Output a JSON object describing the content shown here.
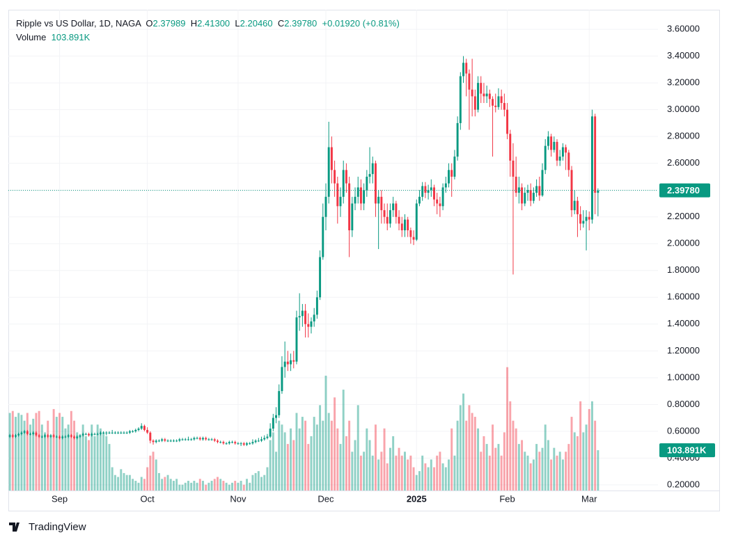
{
  "header": {
    "symbol": "Ripple vs US Dollar, 1D, NAGA",
    "open_label": "O",
    "open": "2.37989",
    "high_label": "H",
    "high": "2.41300",
    "low_label": "L",
    "low": "2.20460",
    "close_label": "C",
    "close": "2.39780",
    "change": "+0.01920 (+0.81%)",
    "volume_label": "Volume",
    "volume": "103.891K"
  },
  "chart_data": {
    "type": "candlestick",
    "up_color": "#089981",
    "down_color": "#f23645",
    "grid": true,
    "xlim": [
      -0.5,
      221.5
    ],
    "xticks": [
      {
        "value": 17,
        "label": "Sep"
      },
      {
        "value": 47,
        "label": "Oct"
      },
      {
        "value": 78,
        "label": "Nov"
      },
      {
        "value": 108,
        "label": "Dec"
      },
      {
        "value": 139,
        "label": "2025"
      },
      {
        "value": 170,
        "label": "Feb"
      },
      {
        "value": 198,
        "label": "Mar"
      }
    ],
    "ylim": [
      0.158,
      3.746
    ],
    "yticks": [
      {
        "value": 0.2,
        "label": "0.20000"
      },
      {
        "value": 0.4,
        "label": "0.40000"
      },
      {
        "value": 0.6,
        "label": "0.60000"
      },
      {
        "value": 0.8,
        "label": "0.80000"
      },
      {
        "value": 1,
        "label": "1.00000"
      },
      {
        "value": 1.2,
        "label": "1.20000"
      },
      {
        "value": 1.4,
        "label": "1.40000"
      },
      {
        "value": 1.6,
        "label": "1.60000"
      },
      {
        "value": 1.8,
        "label": "1.80000"
      },
      {
        "value": 2,
        "label": "2.00000"
      },
      {
        "value": 2.2,
        "label": "2.20000"
      },
      {
        "value": 2.4,
        "label": "2.40000"
      },
      {
        "value": 2.6,
        "label": "2.60000"
      },
      {
        "value": 2.8,
        "label": "2.80000"
      },
      {
        "value": 3,
        "label": "3.00000"
      },
      {
        "value": 3.2,
        "label": "3.20000"
      },
      {
        "value": 3.4,
        "label": "3.40000"
      },
      {
        "value": 3.6,
        "label": "3.60000"
      }
    ],
    "volume_ylim": [
      0,
      400
    ],
    "ohlc": [
      [
        0.56,
        0.58,
        0.55,
        0.57
      ],
      [
        0.57,
        0.58,
        0.55,
        0.56
      ],
      [
        0.56,
        0.58,
        0.55,
        0.57
      ],
      [
        0.57,
        0.59,
        0.56,
        0.58
      ],
      [
        0.58,
        0.6,
        0.57,
        0.59
      ],
      [
        0.59,
        0.61,
        0.58,
        0.6
      ],
      [
        0.6,
        0.61,
        0.57,
        0.58
      ],
      [
        0.58,
        0.59,
        0.57,
        0.58
      ],
      [
        0.58,
        0.6,
        0.57,
        0.59
      ],
      [
        0.59,
        0.6,
        0.56,
        0.57
      ],
      [
        0.57,
        0.58,
        0.55,
        0.56
      ],
      [
        0.56,
        0.57,
        0.55,
        0.56
      ],
      [
        0.56,
        0.58,
        0.55,
        0.57
      ],
      [
        0.57,
        0.58,
        0.55,
        0.56
      ],
      [
        0.56,
        0.58,
        0.55,
        0.57
      ],
      [
        0.57,
        0.58,
        0.55,
        0.56
      ],
      [
        0.56,
        0.57,
        0.55,
        0.56
      ],
      [
        0.56,
        0.57,
        0.54,
        0.55
      ],
      [
        0.55,
        0.57,
        0.54,
        0.56
      ],
      [
        0.56,
        0.57,
        0.55,
        0.56
      ],
      [
        0.56,
        0.58,
        0.55,
        0.57
      ],
      [
        0.57,
        0.58,
        0.55,
        0.56
      ],
      [
        0.56,
        0.57,
        0.54,
        0.55
      ],
      [
        0.55,
        0.57,
        0.54,
        0.56
      ],
      [
        0.56,
        0.58,
        0.55,
        0.57
      ],
      [
        0.57,
        0.59,
        0.56,
        0.58
      ],
      [
        0.58,
        0.59,
        0.57,
        0.58
      ],
      [
        0.58,
        0.59,
        0.56,
        0.57
      ],
      [
        0.57,
        0.59,
        0.56,
        0.58
      ],
      [
        0.58,
        0.59,
        0.57,
        0.58
      ],
      [
        0.58,
        0.59,
        0.57,
        0.58
      ],
      [
        0.58,
        0.6,
        0.57,
        0.59
      ],
      [
        0.59,
        0.6,
        0.58,
        0.59
      ],
      [
        0.59,
        0.6,
        0.57,
        0.59
      ],
      [
        0.59,
        0.6,
        0.58,
        0.59
      ],
      [
        0.59,
        0.61,
        0.58,
        0.59
      ],
      [
        0.59,
        0.6,
        0.58,
        0.59
      ],
      [
        0.59,
        0.6,
        0.58,
        0.59
      ],
      [
        0.59,
        0.6,
        0.58,
        0.59
      ],
      [
        0.59,
        0.6,
        0.58,
        0.59
      ],
      [
        0.59,
        0.6,
        0.58,
        0.59
      ],
      [
        0.59,
        0.61,
        0.58,
        0.6
      ],
      [
        0.6,
        0.61,
        0.59,
        0.6
      ],
      [
        0.6,
        0.62,
        0.59,
        0.61
      ],
      [
        0.61,
        0.63,
        0.6,
        0.62
      ],
      [
        0.62,
        0.66,
        0.61,
        0.64
      ],
      [
        0.64,
        0.65,
        0.6,
        0.61
      ],
      [
        0.61,
        0.63,
        0.58,
        0.59
      ],
      [
        0.59,
        0.6,
        0.51,
        0.53
      ],
      [
        0.53,
        0.54,
        0.5,
        0.52
      ],
      [
        0.52,
        0.54,
        0.51,
        0.53
      ],
      [
        0.53,
        0.54,
        0.52,
        0.53
      ],
      [
        0.53,
        0.55,
        0.52,
        0.54
      ],
      [
        0.54,
        0.55,
        0.52,
        0.53
      ],
      [
        0.53,
        0.54,
        0.52,
        0.53
      ],
      [
        0.53,
        0.54,
        0.52,
        0.53
      ],
      [
        0.53,
        0.54,
        0.52,
        0.53
      ],
      [
        0.53,
        0.54,
        0.52,
        0.53
      ],
      [
        0.53,
        0.55,
        0.52,
        0.54
      ],
      [
        0.54,
        0.55,
        0.53,
        0.54
      ],
      [
        0.54,
        0.55,
        0.53,
        0.54
      ],
      [
        0.54,
        0.56,
        0.53,
        0.54
      ],
      [
        0.54,
        0.55,
        0.53,
        0.54
      ],
      [
        0.54,
        0.56,
        0.53,
        0.55
      ],
      [
        0.55,
        0.56,
        0.54,
        0.55
      ],
      [
        0.55,
        0.56,
        0.53,
        0.54
      ],
      [
        0.54,
        0.56,
        0.53,
        0.55
      ],
      [
        0.55,
        0.56,
        0.53,
        0.54
      ],
      [
        0.54,
        0.55,
        0.53,
        0.54
      ],
      [
        0.54,
        0.55,
        0.53,
        0.54
      ],
      [
        0.54,
        0.55,
        0.52,
        0.53
      ],
      [
        0.53,
        0.54,
        0.51,
        0.52
      ],
      [
        0.52,
        0.53,
        0.51,
        0.52
      ],
      [
        0.52,
        0.53,
        0.5,
        0.51
      ],
      [
        0.51,
        0.52,
        0.5,
        0.51
      ],
      [
        0.51,
        0.53,
        0.5,
        0.52
      ],
      [
        0.52,
        0.53,
        0.51,
        0.52
      ],
      [
        0.52,
        0.53,
        0.5,
        0.51
      ],
      [
        0.51,
        0.52,
        0.5,
        0.51
      ],
      [
        0.51,
        0.52,
        0.49,
        0.51
      ],
      [
        0.51,
        0.52,
        0.49,
        0.5
      ],
      [
        0.5,
        0.52,
        0.49,
        0.51
      ],
      [
        0.51,
        0.52,
        0.5,
        0.51
      ],
      [
        0.51,
        0.54,
        0.5,
        0.52
      ],
      [
        0.52,
        0.54,
        0.51,
        0.53
      ],
      [
        0.53,
        0.55,
        0.52,
        0.53
      ],
      [
        0.53,
        0.56,
        0.52,
        0.54
      ],
      [
        0.54,
        0.57,
        0.53,
        0.55
      ],
      [
        0.55,
        0.58,
        0.54,
        0.56
      ],
      [
        0.56,
        0.66,
        0.55,
        0.62
      ],
      [
        0.62,
        0.73,
        0.6,
        0.7
      ],
      [
        0.7,
        0.78,
        0.66,
        0.72
      ],
      [
        0.72,
        0.95,
        0.7,
        0.9
      ],
      [
        0.9,
        1.16,
        0.88,
        1.08
      ],
      [
        1.08,
        1.27,
        1.0,
        1.12
      ],
      [
        1.12,
        1.2,
        1.05,
        1.1
      ],
      [
        1.1,
        1.18,
        1.05,
        1.13
      ],
      [
        1.13,
        1.2,
        1.07,
        1.12
      ],
      [
        1.12,
        1.5,
        1.1,
        1.45
      ],
      [
        1.45,
        1.63,
        1.35,
        1.46
      ],
      [
        1.46,
        1.55,
        1.38,
        1.5
      ],
      [
        1.5,
        1.55,
        1.3,
        1.4
      ],
      [
        1.4,
        1.48,
        1.3,
        1.38
      ],
      [
        1.38,
        1.45,
        1.33,
        1.42
      ],
      [
        1.42,
        1.52,
        1.38,
        1.47
      ],
      [
        1.47,
        1.65,
        1.44,
        1.6
      ],
      [
        1.6,
        1.95,
        1.58,
        1.9
      ],
      [
        1.9,
        2.3,
        1.88,
        2.2
      ],
      [
        2.2,
        2.45,
        2.1,
        2.35
      ],
      [
        2.35,
        2.91,
        2.3,
        2.72
      ],
      [
        2.72,
        2.8,
        2.45,
        2.55
      ],
      [
        2.55,
        2.62,
        2.35,
        2.45
      ],
      [
        2.45,
        2.5,
        2.15,
        2.28
      ],
      [
        2.28,
        2.42,
        2.2,
        2.35
      ],
      [
        2.35,
        2.62,
        2.3,
        2.55
      ],
      [
        2.55,
        2.6,
        2.38,
        2.45
      ],
      [
        2.45,
        2.5,
        1.9,
        2.1
      ],
      [
        2.1,
        2.35,
        2.05,
        2.3
      ],
      [
        2.3,
        2.42,
        2.25,
        2.35
      ],
      [
        2.35,
        2.5,
        2.3,
        2.42
      ],
      [
        2.42,
        2.48,
        2.25,
        2.3
      ],
      [
        2.3,
        2.45,
        2.25,
        2.4
      ],
      [
        2.4,
        2.55,
        2.35,
        2.5
      ],
      [
        2.5,
        2.72,
        2.45,
        2.52
      ],
      [
        2.52,
        2.65,
        2.45,
        2.6
      ],
      [
        2.6,
        2.62,
        2.2,
        2.3
      ],
      [
        2.3,
        2.4,
        1.96,
        2.35
      ],
      [
        2.35,
        2.4,
        2.15,
        2.25
      ],
      [
        2.25,
        2.3,
        2.15,
        2.2
      ],
      [
        2.2,
        2.3,
        2.1,
        2.15
      ],
      [
        2.15,
        2.3,
        2.12,
        2.25
      ],
      [
        2.25,
        2.35,
        2.2,
        2.3
      ],
      [
        2.3,
        2.32,
        2.15,
        2.2
      ],
      [
        2.2,
        2.25,
        2.1,
        2.15
      ],
      [
        2.15,
        2.2,
        2.05,
        2.1
      ],
      [
        2.1,
        2.22,
        2.05,
        2.18
      ],
      [
        2.18,
        2.2,
        2.05,
        2.1
      ],
      [
        2.1,
        2.12,
        2.0,
        2.05
      ],
      [
        2.05,
        2.1,
        1.99,
        2.03
      ],
      [
        2.03,
        2.33,
        2.02,
        2.3
      ],
      [
        2.3,
        2.4,
        2.28,
        2.35
      ],
      [
        2.35,
        2.46,
        2.32,
        2.43
      ],
      [
        2.43,
        2.46,
        2.34,
        2.38
      ],
      [
        2.38,
        2.44,
        2.33,
        2.4
      ],
      [
        2.4,
        2.48,
        2.35,
        2.42
      ],
      [
        2.42,
        2.44,
        2.28,
        2.33
      ],
      [
        2.33,
        2.38,
        2.22,
        2.3
      ],
      [
        2.3,
        2.35,
        2.2,
        2.28
      ],
      [
        2.28,
        2.45,
        2.25,
        2.42
      ],
      [
        2.42,
        2.5,
        2.38,
        2.45
      ],
      [
        2.45,
        2.6,
        2.42,
        2.55
      ],
      [
        2.55,
        2.6,
        2.35,
        2.5
      ],
      [
        2.5,
        2.7,
        2.48,
        2.65
      ],
      [
        2.65,
        2.95,
        2.62,
        2.9
      ],
      [
        2.9,
        3.28,
        2.85,
        3.25
      ],
      [
        3.25,
        3.4,
        3.2,
        3.35
      ],
      [
        3.35,
        3.38,
        3.1,
        3.27
      ],
      [
        3.27,
        3.3,
        2.85,
        3.15
      ],
      [
        3.15,
        3.38,
        2.95,
        3.1
      ],
      [
        3.1,
        3.15,
        2.95,
        3.0
      ],
      [
        3.0,
        3.25,
        2.98,
        3.2
      ],
      [
        3.2,
        3.25,
        3.05,
        3.12
      ],
      [
        3.12,
        3.2,
        3.05,
        3.1
      ],
      [
        3.1,
        3.18,
        3.05,
        3.12
      ],
      [
        3.12,
        3.15,
        3.02,
        3.08
      ],
      [
        3.08,
        3.1,
        2.65,
        3.03
      ],
      [
        3.03,
        3.12,
        2.98,
        3.02
      ],
      [
        3.02,
        3.16,
        3.0,
        3.1
      ],
      [
        3.1,
        3.15,
        3.0,
        3.05
      ],
      [
        3.05,
        3.12,
        2.95,
        3.0
      ],
      [
        3.0,
        3.05,
        2.78,
        2.82
      ],
      [
        2.82,
        2.85,
        2.5,
        2.62
      ],
      [
        2.62,
        2.75,
        1.77,
        2.5
      ],
      [
        2.5,
        2.65,
        2.35,
        2.38
      ],
      [
        2.38,
        2.5,
        2.3,
        2.42
      ],
      [
        2.42,
        2.45,
        2.25,
        2.3
      ],
      [
        2.3,
        2.42,
        2.28,
        2.38
      ],
      [
        2.38,
        2.44,
        2.32,
        2.4
      ],
      [
        2.4,
        2.45,
        2.28,
        2.32
      ],
      [
        2.32,
        2.42,
        2.3,
        2.38
      ],
      [
        2.38,
        2.48,
        2.35,
        2.43
      ],
      [
        2.43,
        2.5,
        2.32,
        2.36
      ],
      [
        2.36,
        2.6,
        2.35,
        2.55
      ],
      [
        2.55,
        2.78,
        2.52,
        2.73
      ],
      [
        2.73,
        2.84,
        2.7,
        2.8
      ],
      [
        2.8,
        2.82,
        2.65,
        2.7
      ],
      [
        2.7,
        2.8,
        2.68,
        2.76
      ],
      [
        2.76,
        2.78,
        2.58,
        2.62
      ],
      [
        2.62,
        2.7,
        2.58,
        2.65
      ],
      [
        2.65,
        2.75,
        2.62,
        2.72
      ],
      [
        2.72,
        2.74,
        2.55,
        2.68
      ],
      [
        2.68,
        2.7,
        2.5,
        2.55
      ],
      [
        2.55,
        2.58,
        2.2,
        2.25
      ],
      [
        2.25,
        2.4,
        2.22,
        2.32
      ],
      [
        2.32,
        2.35,
        2.05,
        2.22
      ],
      [
        2.22,
        2.28,
        2.1,
        2.15
      ],
      [
        2.15,
        2.25,
        2.12,
        2.17
      ],
      [
        2.17,
        2.25,
        1.95,
        2.2
      ],
      [
        2.2,
        2.24,
        2.1,
        2.18
      ],
      [
        2.18,
        3.0,
        2.15,
        2.95
      ],
      [
        2.95,
        2.97,
        2.22,
        2.38
      ],
      [
        2.37989,
        2.413,
        2.2046,
        2.3978
      ]
    ],
    "volume": [
      200,
      205,
      190,
      200,
      195,
      180,
      200,
      170,
      185,
      200,
      205,
      170,
      150,
      180,
      140,
      210,
      190,
      200,
      190,
      160,
      170,
      205,
      180,
      150,
      140,
      170,
      140,
      130,
      170,
      140,
      170,
      160,
      150,
      140,
      120,
      60,
      40,
      35,
      55,
      45,
      40,
      40,
      30,
      25,
      20,
      35,
      30,
      60,
      90,
      100,
      80,
      45,
      30,
      35,
      40,
      30,
      25,
      30,
      15,
      15,
      20,
      25,
      20,
      25,
      20,
      30,
      25,
      15,
      20,
      25,
      30,
      35,
      30,
      25,
      20,
      15,
      20,
      25,
      20,
      25,
      15,
      30,
      20,
      40,
      45,
      50,
      35,
      40,
      60,
      130,
      150,
      100,
      180,
      170,
      150,
      120,
      160,
      130,
      200,
      160,
      190,
      180,
      120,
      140,
      190,
      170,
      220,
      180,
      296,
      200,
      180,
      240,
      160,
      120,
      260,
      140,
      180,
      100,
      130,
      220,
      90,
      100,
      160,
      130,
      90,
      170,
      80,
      100,
      160,
      70,
      110,
      140,
      90,
      110,
      90,
      100,
      80,
      90,
      60,
      40,
      50,
      90,
      70,
      60,
      80,
      60,
      90,
      100,
      70,
      60,
      80,
      160,
      90,
      180,
      220,
      250,
      180,
      220,
      200,
      190,
      160,
      100,
      140,
      120,
      90,
      170,
      110,
      120,
      90,
      150,
      318,
      230,
      180,
      160,
      120,
      130,
      100,
      90,
      70,
      80,
      120,
      100,
      110,
      170,
      130,
      80,
      110,
      90,
      100,
      80,
      100,
      120,
      190,
      150,
      140,
      230,
      150,
      170,
      210,
      230,
      180,
      103.891
    ]
  },
  "footer": {
    "brand": "TradingView"
  }
}
